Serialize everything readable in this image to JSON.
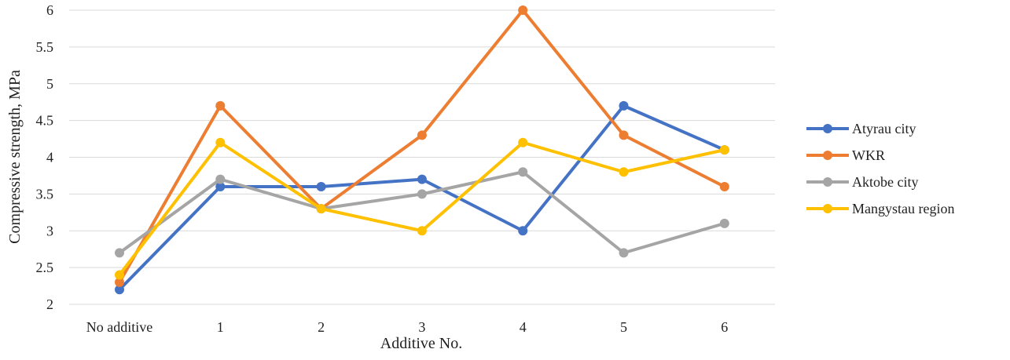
{
  "chart_data": {
    "type": "line",
    "title": "",
    "xlabel": "Additive No.",
    "ylabel": "Compressive strength, MPa",
    "categories": [
      "No additive",
      "1",
      "2",
      "3",
      "4",
      "5",
      "6"
    ],
    "ylim": [
      2,
      6
    ],
    "yticks": [
      "2",
      "2.5",
      "3",
      "3.5",
      "4",
      "4.5",
      "5",
      "5.5",
      "6"
    ],
    "grid": "horizontal",
    "legend_position": "right",
    "series": [
      {
        "name": "Atyrau city",
        "color": "#4472C4",
        "values": [
          2.2,
          3.6,
          3.6,
          3.7,
          3.0,
          4.7,
          4.1
        ]
      },
      {
        "name": "WKR",
        "color": "#ED7D31",
        "values": [
          2.3,
          4.7,
          3.3,
          4.3,
          6.0,
          4.3,
          3.6
        ]
      },
      {
        "name": "Aktobe city",
        "color": "#A5A5A5",
        "values": [
          2.7,
          3.7,
          3.3,
          3.5,
          3.8,
          2.7,
          3.1
        ]
      },
      {
        "name": "Mangystau region",
        "color": "#FFC000",
        "values": [
          2.4,
          4.2,
          3.3,
          3.0,
          4.2,
          3.8,
          4.1
        ]
      }
    ]
  }
}
